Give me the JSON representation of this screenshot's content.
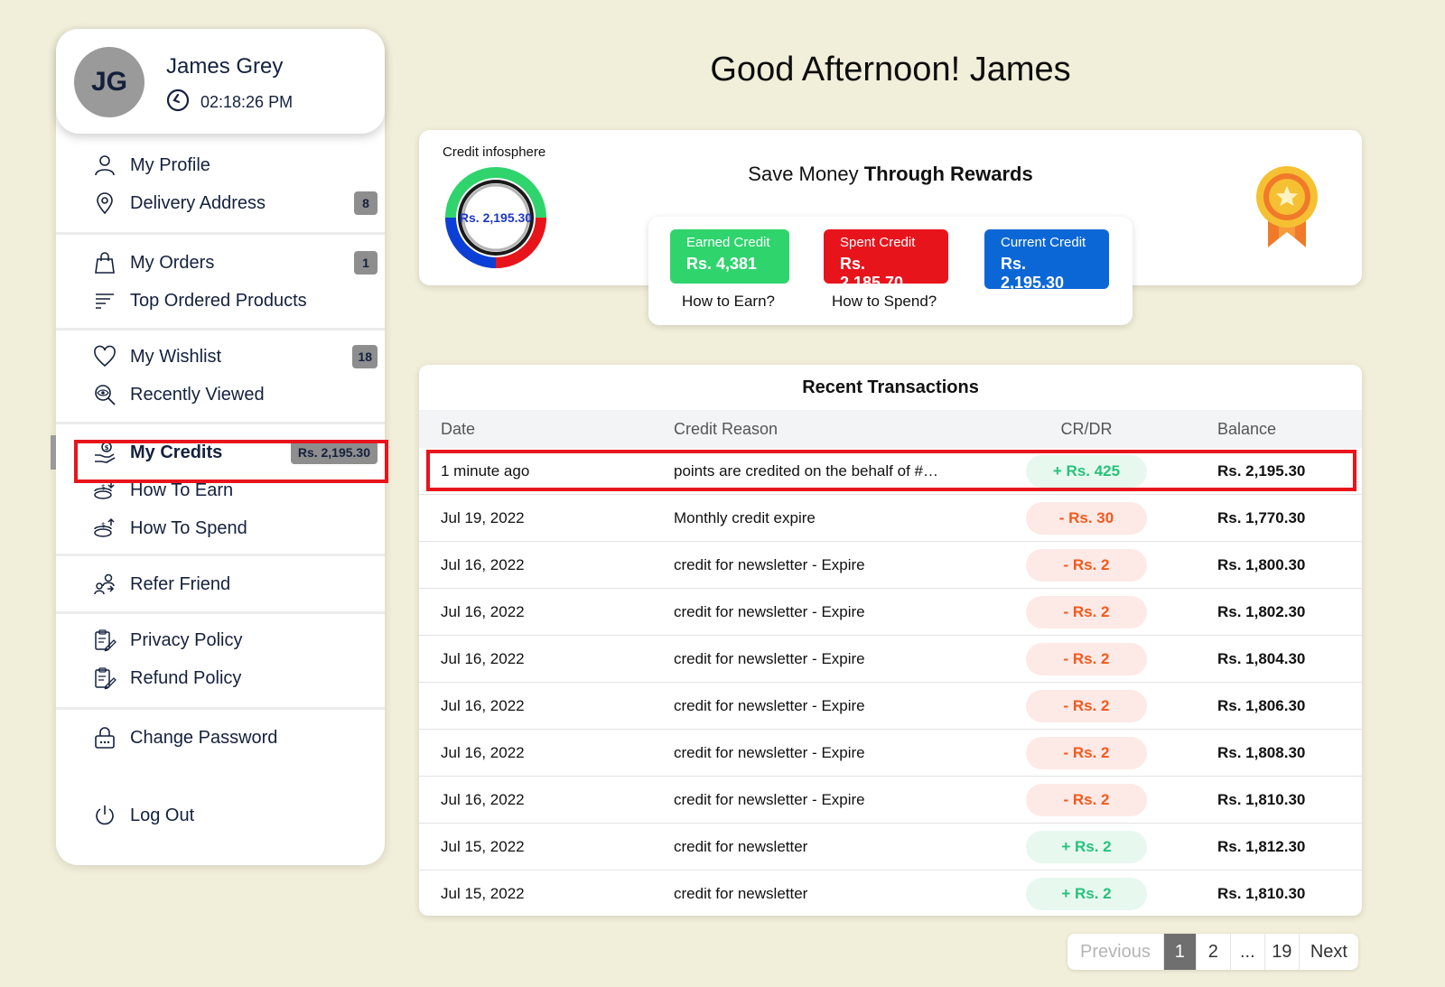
{
  "user": {
    "initials": "JG",
    "name": "James Grey",
    "time": "02:18:26 PM"
  },
  "menu": {
    "profile": "My Profile",
    "address": "Delivery Address",
    "address_badge": "8",
    "orders": "My Orders",
    "orders_badge": "1",
    "top_products": "Top Ordered Products",
    "wishlist": "My Wishlist",
    "wishlist_badge": "18",
    "recently_viewed": "Recently Viewed",
    "credits": "My Credits",
    "credits_badge": "Rs. 2,195.30",
    "how_to_earn": "How To Earn",
    "how_to_spend": "How To Spend",
    "refer": "Refer Friend",
    "privacy": "Privacy Policy",
    "refund": "Refund Policy",
    "change_password": "Change Password",
    "logout": "Log Out"
  },
  "greeting": "Good Afternoon! James",
  "rewards": {
    "infosphere_label": "Credit infosphere",
    "donut_value": "Rs. 2,195.30",
    "title_prefix": "Save Money ",
    "title_bold": "Through Rewards",
    "earned_label": "Earned Credit",
    "earned_value": "Rs. 4,381",
    "spent_label": "Spent Credit",
    "spent_value": "Rs. 2,185.70",
    "current_label": "Current Credit",
    "current_value": "Rs. 2,195.30",
    "earn_link": "How to Earn?",
    "spend_link": "How to Spend?"
  },
  "colors": {
    "earned": "#2fd46d",
    "spent": "#e8141c",
    "current": "#0c67d6",
    "highlight": "#e8141c"
  },
  "transactions": {
    "title": "Recent Transactions",
    "columns": {
      "date": "Date",
      "reason": "Credit Reason",
      "crdr": "CR/DR",
      "balance": "Balance"
    },
    "rows": [
      {
        "date": "1 minute ago",
        "reason": "points are credited on the behalf of #…",
        "amount": "+ Rs. 425",
        "type": "credit",
        "balance": "Rs. 2,195.30"
      },
      {
        "date": "Jul 19, 2022",
        "reason": "Monthly credit expire",
        "amount": "- Rs. 30",
        "type": "debit",
        "balance": "Rs. 1,770.30"
      },
      {
        "date": "Jul 16, 2022",
        "reason": "credit for newsletter - Expire",
        "amount": "- Rs. 2",
        "type": "debit",
        "balance": "Rs. 1,800.30"
      },
      {
        "date": "Jul 16, 2022",
        "reason": "credit for newsletter - Expire",
        "amount": "- Rs. 2",
        "type": "debit",
        "balance": "Rs. 1,802.30"
      },
      {
        "date": "Jul 16, 2022",
        "reason": "credit for newsletter - Expire",
        "amount": "- Rs. 2",
        "type": "debit",
        "balance": "Rs. 1,804.30"
      },
      {
        "date": "Jul 16, 2022",
        "reason": "credit for newsletter - Expire",
        "amount": "- Rs. 2",
        "type": "debit",
        "balance": "Rs. 1,806.30"
      },
      {
        "date": "Jul 16, 2022",
        "reason": "credit for newsletter - Expire",
        "amount": "- Rs. 2",
        "type": "debit",
        "balance": "Rs. 1,808.30"
      },
      {
        "date": "Jul 16, 2022",
        "reason": "credit for newsletter - Expire",
        "amount": "- Rs. 2",
        "type": "debit",
        "balance": "Rs. 1,810.30"
      },
      {
        "date": "Jul 15, 2022",
        "reason": "credit for newsletter",
        "amount": "+ Rs. 2",
        "type": "credit",
        "balance": "Rs. 1,812.30"
      },
      {
        "date": "Jul 15, 2022",
        "reason": "credit for newsletter",
        "amount": "+ Rs. 2",
        "type": "credit",
        "balance": "Rs. 1,810.30"
      }
    ]
  },
  "pagination": {
    "previous": "Previous",
    "pages": [
      "1",
      "2",
      "...",
      "19"
    ],
    "next": "Next",
    "current": "1"
  }
}
